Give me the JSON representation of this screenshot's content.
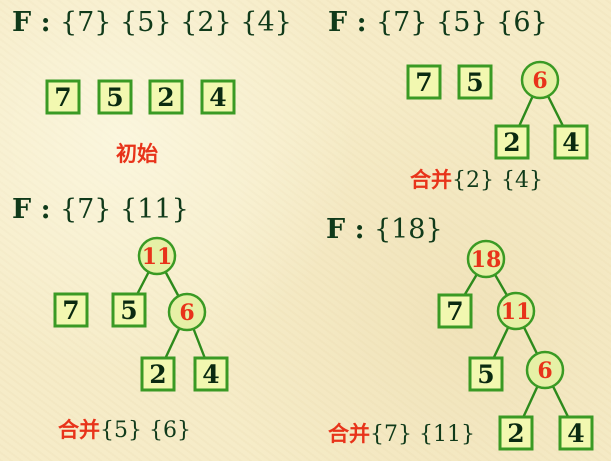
{
  "panels": [
    {
      "heading_prefix": "F : ",
      "heading_sets": "{7} {5} {2} {4}",
      "caption_label": "初始",
      "caption_sets": "",
      "nodes": [
        {
          "label": "7",
          "kind": "leaf"
        },
        {
          "label": "5",
          "kind": "leaf"
        },
        {
          "label": "2",
          "kind": "leaf"
        },
        {
          "label": "4",
          "kind": "leaf"
        }
      ]
    },
    {
      "heading_prefix": "F : ",
      "heading_sets": "{7} {5} {6}",
      "caption_label": "合并",
      "caption_sets": "{2} {4}",
      "nodes": [
        {
          "label": "7",
          "kind": "leaf"
        },
        {
          "label": "5",
          "kind": "leaf"
        },
        {
          "label": "6",
          "kind": "internal"
        },
        {
          "label": "2",
          "kind": "leaf"
        },
        {
          "label": "4",
          "kind": "leaf"
        }
      ]
    },
    {
      "heading_prefix": "F : ",
      "heading_sets": "{7} {11}",
      "caption_label": "合并",
      "caption_sets": "{5} {6}",
      "nodes": [
        {
          "label": "11",
          "kind": "internal"
        },
        {
          "label": "7",
          "kind": "leaf"
        },
        {
          "label": "5",
          "kind": "leaf"
        },
        {
          "label": "6",
          "kind": "internal"
        },
        {
          "label": "2",
          "kind": "leaf"
        },
        {
          "label": "4",
          "kind": "leaf"
        }
      ]
    },
    {
      "heading_prefix": "F : ",
      "heading_sets": "{18}",
      "caption_label": "合并",
      "caption_sets": "{7} {11}",
      "nodes": [
        {
          "label": "18",
          "kind": "internal"
        },
        {
          "label": "7",
          "kind": "leaf"
        },
        {
          "label": "11",
          "kind": "internal"
        },
        {
          "label": "5",
          "kind": "leaf"
        },
        {
          "label": "6",
          "kind": "internal"
        },
        {
          "label": "2",
          "kind": "leaf"
        },
        {
          "label": "4",
          "kind": "leaf"
        }
      ]
    }
  ],
  "colors": {
    "background": "#f6ecc8",
    "heading_text": "#103a1a",
    "node_stroke": "#3a9a24",
    "leaf_fill": "#f2f8b0",
    "internal_fill": "#e6f0a6",
    "internal_text": "#e8331a",
    "caption_label": "#e8331a"
  }
}
